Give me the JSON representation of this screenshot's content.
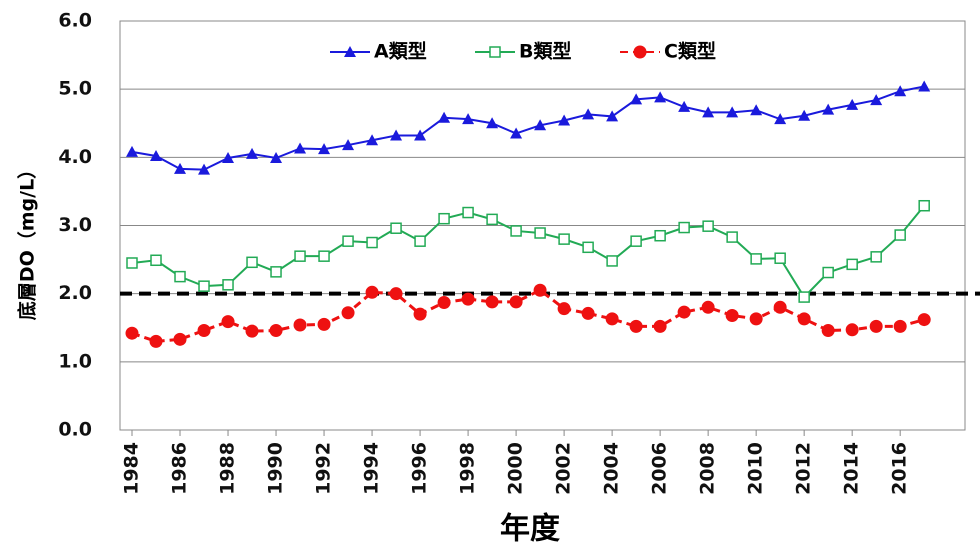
{
  "chart_data": {
    "type": "line",
    "y_label": "底層DO（mg/L）",
    "x_label": "年度",
    "x": [
      1984,
      1985,
      1986,
      1987,
      1988,
      1989,
      1990,
      1991,
      1992,
      1993,
      1994,
      1995,
      1996,
      1997,
      1998,
      1999,
      2000,
      2001,
      2002,
      2003,
      2004,
      2005,
      2006,
      2007,
      2008,
      2009,
      2010,
      2011,
      2012,
      2013,
      2014,
      2015,
      2016,
      2017
    ],
    "xlim": [
      1983.5,
      2018.7
    ],
    "xticks": [
      1984,
      1986,
      1988,
      1990,
      1992,
      1994,
      1996,
      1998,
      2000,
      2002,
      2004,
      2006,
      2008,
      2010,
      2012,
      2014,
      2016
    ],
    "ylim": [
      0,
      6
    ],
    "yticks": [
      {
        "value": 0,
        "label": "0.0"
      },
      {
        "value": 1,
        "label": "1.0"
      },
      {
        "value": 2,
        "label": "2.0"
      },
      {
        "value": 3,
        "label": "3.0"
      },
      {
        "value": 4,
        "label": "4.0"
      },
      {
        "value": 5,
        "label": "5.0"
      },
      {
        "value": 6,
        "label": "6.0"
      }
    ],
    "grid": true,
    "legend": "top",
    "reference_line": 2.0,
    "series": [
      {
        "name": "A類型",
        "color": "#1a1adc",
        "marker": "triangle",
        "line": "solid",
        "values": [
          4.08,
          4.02,
          3.83,
          3.82,
          3.99,
          4.05,
          3.99,
          4.13,
          4.12,
          4.18,
          4.25,
          4.32,
          4.32,
          4.58,
          4.56,
          4.5,
          4.35,
          4.47,
          4.54,
          4.63,
          4.6,
          4.85,
          4.88,
          4.74,
          4.66,
          4.66,
          4.69,
          4.56,
          4.61,
          4.7,
          4.77,
          4.84,
          4.97,
          5.04
        ]
      },
      {
        "name": "B類型",
        "color": "#22aa55",
        "marker": "open-square",
        "line": "solid",
        "values": [
          2.45,
          2.49,
          2.25,
          2.11,
          2.13,
          2.46,
          2.32,
          2.55,
          2.55,
          2.77,
          2.75,
          2.96,
          2.77,
          3.1,
          3.19,
          3.09,
          2.92,
          2.89,
          2.8,
          2.68,
          2.48,
          2.77,
          2.85,
          2.97,
          2.99,
          2.83,
          2.51,
          2.52,
          1.95,
          2.31,
          2.43,
          2.54,
          2.86,
          3.29
        ]
      },
      {
        "name": "C類型",
        "color": "#ee1111",
        "marker": "circle",
        "line": "dashed",
        "values": [
          1.42,
          1.3,
          1.33,
          1.46,
          1.59,
          1.45,
          1.46,
          1.54,
          1.55,
          1.72,
          2.02,
          2.0,
          1.7,
          1.87,
          1.92,
          1.88,
          1.88,
          2.05,
          1.78,
          1.71,
          1.63,
          1.52,
          1.52,
          1.73,
          1.8,
          1.68,
          1.63,
          1.8,
          1.63,
          1.46,
          1.47,
          1.52,
          1.52,
          1.62
        ]
      }
    ]
  }
}
